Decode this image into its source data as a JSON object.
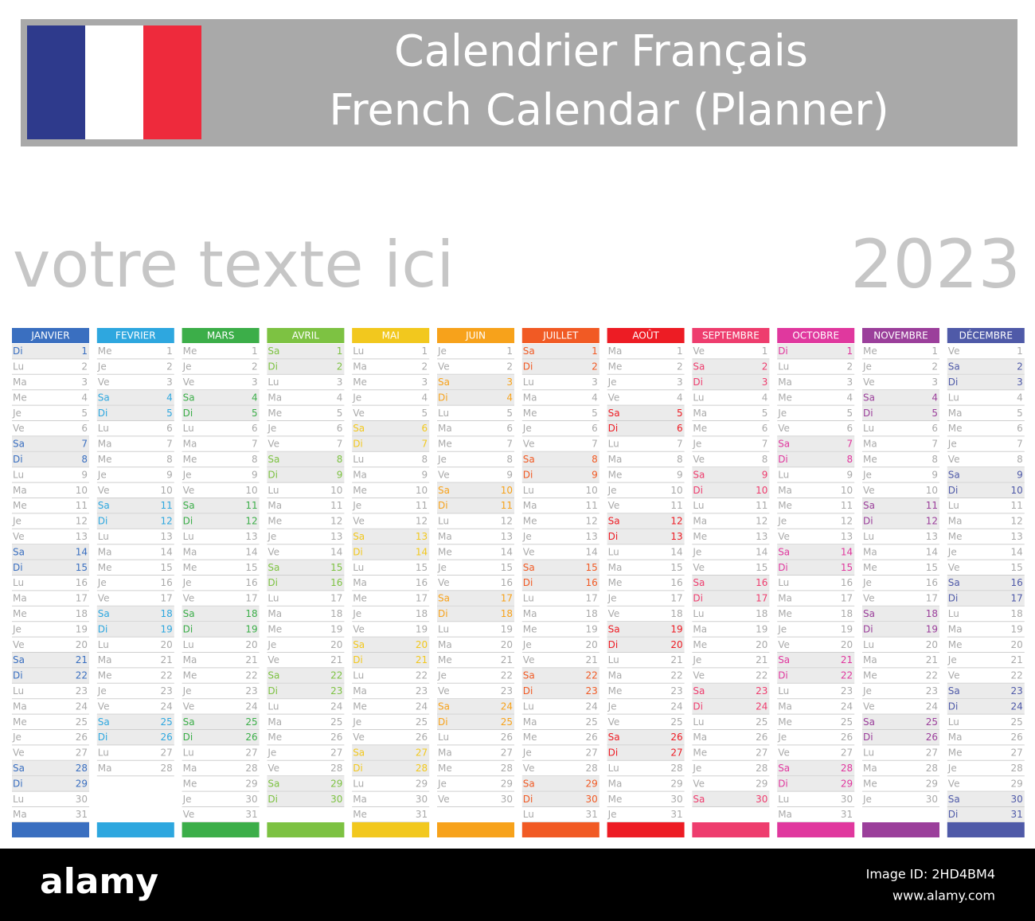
{
  "header": {
    "title_line1": "Calendrier Français",
    "title_line2": "French Calendar (Planner)",
    "flag_colors": [
      "#2e3a8c",
      "#ffffff",
      "#ee2a3c"
    ]
  },
  "subtitle": "votre texte ici",
  "year": "2023",
  "calendar": {
    "weekend": [
      "Sa",
      "Di"
    ],
    "months": [
      {
        "name": "JANVIER",
        "color": "#3a6fc0",
        "weekdays": [
          "Di",
          "Lu",
          "Ma",
          "Me",
          "Je",
          "Ve",
          "Sa",
          "Di",
          "Lu",
          "Ma",
          "Me",
          "Je",
          "Ve",
          "Sa",
          "Di",
          "Lu",
          "Ma",
          "Me",
          "Je",
          "Ve",
          "Sa",
          "Di",
          "Lu",
          "Ma",
          "Me",
          "Je",
          "Ve",
          "Sa",
          "Di",
          "Lu",
          "Ma"
        ],
        "dates": [
          1,
          2,
          3,
          4,
          5,
          6,
          7,
          8,
          9,
          10,
          11,
          12,
          13,
          14,
          15,
          16,
          17,
          18,
          19,
          20,
          21,
          22,
          23,
          24,
          25,
          26,
          27,
          28,
          29,
          30,
          31
        ]
      },
      {
        "name": "FEVRIER",
        "color": "#2ea7df",
        "weekdays": [
          "Me",
          "Je",
          "Ve",
          "Sa",
          "Di",
          "Lu",
          "Ma",
          "Me",
          "Je",
          "Ve",
          "Sa",
          "Di",
          "Lu",
          "Ma",
          "Me",
          "Je",
          "Ve",
          "Sa",
          "Di",
          "Lu",
          "Ma",
          "Me",
          "Je",
          "Ve",
          "Sa",
          "Di",
          "Lu",
          "Ma"
        ],
        "dates": [
          1,
          2,
          3,
          4,
          5,
          6,
          7,
          8,
          9,
          10,
          11,
          12,
          13,
          14,
          15,
          16,
          17,
          18,
          19,
          20,
          21,
          22,
          23,
          24,
          25,
          26,
          27,
          28
        ]
      },
      {
        "name": "MARS",
        "color": "#3cae49",
        "weekdays": [
          "Me",
          "Je",
          "Ve",
          "Sa",
          "Di",
          "Lu",
          "Ma",
          "Me",
          "Je",
          "Ve",
          "Sa",
          "Di",
          "Lu",
          "Ma",
          "Me",
          "Je",
          "Ve",
          "Sa",
          "Di",
          "Lu",
          "Ma",
          "Me",
          "Je",
          "Ve",
          "Sa",
          "Di",
          "Lu",
          "Ma",
          "Me",
          "Je",
          "Ve"
        ],
        "dates": [
          1,
          2,
          3,
          4,
          5,
          6,
          7,
          8,
          9,
          10,
          11,
          12,
          13,
          14,
          15,
          16,
          17,
          18,
          19,
          20,
          21,
          22,
          23,
          24,
          25,
          26,
          27,
          28,
          29,
          30,
          31
        ]
      },
      {
        "name": "AVRIL",
        "color": "#7dc242",
        "weekdays": [
          "Sa",
          "Di",
          "Lu",
          "Ma",
          "Me",
          "Je",
          "Ve",
          "Sa",
          "Di",
          "Lu",
          "Ma",
          "Me",
          "Je",
          "Ve",
          "Sa",
          "Di",
          "Lu",
          "Ma",
          "Me",
          "Je",
          "Ve",
          "Sa",
          "Di",
          "Lu",
          "Ma",
          "Me",
          "Je",
          "Ve",
          "Sa",
          "Di"
        ],
        "dates": [
          1,
          2,
          3,
          4,
          5,
          6,
          7,
          8,
          9,
          10,
          11,
          12,
          13,
          14,
          15,
          16,
          17,
          18,
          19,
          20,
          21,
          22,
          23,
          24,
          25,
          26,
          27,
          28,
          29,
          30
        ]
      },
      {
        "name": "MAI",
        "color": "#f2c81e",
        "weekdays": [
          "Lu",
          "Ma",
          "Me",
          "Je",
          "Ve",
          "Sa",
          "Di",
          "Lu",
          "Ma",
          "Me",
          "Je",
          "Ve",
          "Sa",
          "Di",
          "Lu",
          "Ma",
          "Me",
          "Je",
          "Ve",
          "Sa",
          "Di",
          "Lu",
          "Ma",
          "Me",
          "Je",
          "Ve",
          "Sa",
          "Di",
          "Lu",
          "Ma",
          "Me"
        ],
        "dates": [
          1,
          2,
          3,
          4,
          5,
          6,
          7,
          8,
          9,
          10,
          11,
          12,
          13,
          14,
          15,
          16,
          17,
          18,
          19,
          20,
          21,
          22,
          23,
          24,
          25,
          26,
          27,
          28,
          29,
          30,
          31
        ]
      },
      {
        "name": "JUIN",
        "color": "#f7a21b",
        "weekdays": [
          "Je",
          "Ve",
          "Sa",
          "Di",
          "Lu",
          "Ma",
          "Me",
          "Je",
          "Ve",
          "Sa",
          "Di",
          "Lu",
          "Ma",
          "Me",
          "Je",
          "Ve",
          "Sa",
          "Di",
          "Lu",
          "Ma",
          "Me",
          "Je",
          "Ve",
          "Sa",
          "Di",
          "Lu",
          "Ma",
          "Me",
          "Je",
          "Ve"
        ],
        "dates": [
          1,
          2,
          3,
          4,
          5,
          6,
          7,
          8,
          9,
          10,
          11,
          12,
          13,
          14,
          15,
          16,
          17,
          18,
          19,
          20,
          21,
          22,
          23,
          24,
          25,
          26,
          27,
          28,
          29,
          30
        ]
      },
      {
        "name": "JUILLET",
        "color": "#f15a24",
        "weekdays": [
          "Sa",
          "Di",
          "Lu",
          "Ma",
          "Me",
          "Je",
          "Ve",
          "Sa",
          "Di",
          "Lu",
          "Ma",
          "Me",
          "Je",
          "Ve",
          "Sa",
          "Di",
          "Lu",
          "Ma",
          "Me",
          "Je",
          "Ve",
          "Sa",
          "Di",
          "Lu",
          "Ma",
          "Me",
          "Je",
          "Ve",
          "Sa",
          "Di",
          "Lu"
        ],
        "dates": [
          1,
          2,
          3,
          4,
          5,
          6,
          7,
          8,
          9,
          10,
          11,
          12,
          13,
          14,
          15,
          16,
          17,
          18,
          19,
          20,
          21,
          22,
          23,
          24,
          25,
          26,
          27,
          28,
          29,
          30,
          31
        ]
      },
      {
        "name": "AOÛT",
        "color": "#ed1c24",
        "weekdays": [
          "Ma",
          "Me",
          "Je",
          "Ve",
          "Sa",
          "Di",
          "Lu",
          "Ma",
          "Me",
          "Je",
          "Ve",
          "Sa",
          "Di",
          "Lu",
          "Ma",
          "Me",
          "Je",
          "Ve",
          "Sa",
          "Di",
          "Lu",
          "Ma",
          "Me",
          "Je",
          "Ve",
          "Sa",
          "Di",
          "Lu",
          "Ma",
          "Me",
          "Je"
        ],
        "dates": [
          1,
          2,
          3,
          4,
          5,
          6,
          7,
          8,
          9,
          10,
          11,
          12,
          13,
          14,
          15,
          16,
          17,
          18,
          19,
          20,
          21,
          22,
          23,
          24,
          25,
          26,
          27,
          28,
          29,
          30,
          31
        ]
      },
      {
        "name": "SEPTEMBRE",
        "color": "#ee3d6e",
        "weekdays": [
          "Ve",
          "Sa",
          "Di",
          "Lu",
          "Ma",
          "Me",
          "Je",
          "Ve",
          "Sa",
          "Di",
          "Lu",
          "Ma",
          "Me",
          "Je",
          "Ve",
          "Sa",
          "Di",
          "Lu",
          "Ma",
          "Me",
          "Je",
          "Ve",
          "Sa",
          "Di",
          "Lu",
          "Ma",
          "Me",
          "Je",
          "Ve",
          "Sa"
        ],
        "dates": [
          1,
          2,
          3,
          4,
          5,
          6,
          7,
          8,
          9,
          10,
          11,
          12,
          13,
          14,
          15,
          16,
          17,
          18,
          19,
          20,
          21,
          22,
          23,
          24,
          25,
          26,
          27,
          28,
          29,
          30
        ]
      },
      {
        "name": "OCTOBRE",
        "color": "#e0389e",
        "weekdays": [
          "Di",
          "Lu",
          "Ma",
          "Me",
          "Je",
          "Ve",
          "Sa",
          "Di",
          "Lu",
          "Ma",
          "Me",
          "Je",
          "Ve",
          "Sa",
          "Di",
          "Lu",
          "Ma",
          "Me",
          "Je",
          "Ve",
          "Sa",
          "Di",
          "Lu",
          "Ma",
          "Me",
          "Je",
          "Ve",
          "Sa",
          "Di",
          "Lu",
          "Ma"
        ],
        "dates": [
          1,
          2,
          3,
          4,
          5,
          6,
          7,
          8,
          9,
          10,
          11,
          12,
          13,
          14,
          15,
          16,
          17,
          18,
          19,
          20,
          21,
          22,
          23,
          24,
          25,
          26,
          27,
          28,
          29,
          30,
          31
        ]
      },
      {
        "name": "NOVEMBRE",
        "color": "#9b3f9b",
        "weekdays": [
          "Me",
          "Je",
          "Ve",
          "Sa",
          "Di",
          "Lu",
          "Ma",
          "Me",
          "Je",
          "Ve",
          "Sa",
          "Di",
          "Lu",
          "Ma",
          "Me",
          "Je",
          "Ve",
          "Sa",
          "Di",
          "Lu",
          "Ma",
          "Me",
          "Je",
          "Ve",
          "Sa",
          "Di",
          "Lu",
          "Ma",
          "Me",
          "Je"
        ],
        "dates": [
          1,
          2,
          3,
          4,
          5,
          6,
          7,
          8,
          9,
          10,
          11,
          12,
          13,
          14,
          15,
          16,
          17,
          18,
          19,
          20,
          21,
          22,
          23,
          24,
          25,
          26,
          27,
          28,
          29,
          30
        ]
      },
      {
        "name": "DÉCEMBRE",
        "color": "#4f5aa8",
        "weekdays": [
          "Ve",
          "Sa",
          "Di",
          "Lu",
          "Ma",
          "Me",
          "Je",
          "Ve",
          "Sa",
          "Di",
          "Lu",
          "Ma",
          "Me",
          "Je",
          "Ve",
          "Sa",
          "Di",
          "Lu",
          "Ma",
          "Me",
          "Je",
          "Ve",
          "Sa",
          "Di",
          "Lu",
          "Ma",
          "Me",
          "Je",
          "Ve",
          "Sa",
          "Di"
        ],
        "dates": [
          1,
          2,
          3,
          4,
          5,
          6,
          7,
          8,
          9,
          10,
          11,
          12,
          13,
          14,
          15,
          16,
          17,
          18,
          19,
          20,
          21,
          22,
          23,
          24,
          25,
          26,
          27,
          28,
          29,
          30,
          31
        ]
      }
    ]
  },
  "footer": {
    "brand": "alamy",
    "image_id": "Image ID: 2HD4BM4",
    "url": "www.alamy.com"
  }
}
